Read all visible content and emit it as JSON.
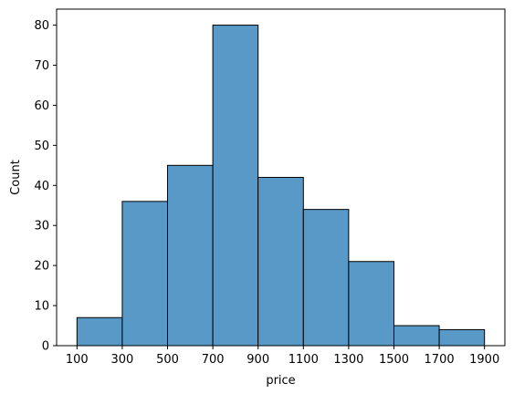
{
  "chart_data": {
    "type": "bar",
    "bins": [
      {
        "start": 100,
        "end": 300,
        "count": 7
      },
      {
        "start": 300,
        "end": 500,
        "count": 36
      },
      {
        "start": 500,
        "end": 700,
        "count": 45
      },
      {
        "start": 700,
        "end": 900,
        "count": 80
      },
      {
        "start": 900,
        "end": 1100,
        "count": 42
      },
      {
        "start": 1100,
        "end": 1300,
        "count": 34
      },
      {
        "start": 1300,
        "end": 1500,
        "count": 21
      },
      {
        "start": 1500,
        "end": 1700,
        "count": 5
      },
      {
        "start": 1700,
        "end": 1900,
        "count": 4
      }
    ],
    "xlabel": "price",
    "ylabel": "Count",
    "xlim": [
      10,
      1990
    ],
    "ylim": [
      0,
      84
    ],
    "xticks": [
      100,
      300,
      500,
      700,
      900,
      1100,
      1300,
      1500,
      1700,
      1900
    ],
    "yticks": [
      0,
      10,
      20,
      30,
      40,
      50,
      60,
      70,
      80
    ],
    "bar_color": "#5899c8",
    "edge_color": "#000000",
    "grid": false,
    "legend": "none"
  }
}
